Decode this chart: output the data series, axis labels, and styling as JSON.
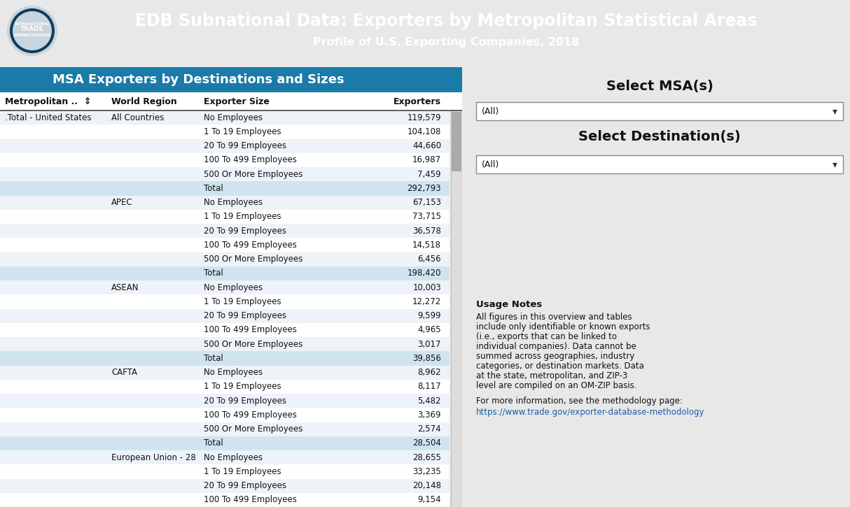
{
  "header_bg": "#0d3d5e",
  "header_text_color": "#ffffff",
  "title_line1": "EDB Subnational Data: Exporters by Metropolitan Statistical Areas",
  "title_line2": "Profile of U.S. Exporting Companies, 2018",
  "table_title": "MSA Exporters by Destinations and Sizes",
  "table_title_bg": "#1a7aa8",
  "col_headers": [
    "Metropolitan ..  ⇕",
    "World Region",
    "Exporter Size",
    "Exporters"
  ],
  "rows": [
    [
      ".Total - United States",
      "All Countries",
      "No Employees",
      "119,579"
    ],
    [
      "",
      "",
      "1 To 19 Employees",
      "104,108"
    ],
    [
      "",
      "",
      "20 To 99 Employees",
      "44,660"
    ],
    [
      "",
      "",
      "100 To 499 Employees",
      "16,987"
    ],
    [
      "",
      "",
      "500 Or More Employees",
      "7,459"
    ],
    [
      "",
      "",
      "Total",
      "292,793"
    ],
    [
      "",
      "APEC",
      "No Employees",
      "67,153"
    ],
    [
      "",
      "",
      "1 To 19 Employees",
      "73,715"
    ],
    [
      "",
      "",
      "20 To 99 Employees",
      "36,578"
    ],
    [
      "",
      "",
      "100 To 499 Employees",
      "14,518"
    ],
    [
      "",
      "",
      "500 Or More Employees",
      "6,456"
    ],
    [
      "",
      "",
      "Total",
      "198,420"
    ],
    [
      "",
      "ASEAN",
      "No Employees",
      "10,003"
    ],
    [
      "",
      "",
      "1 To 19 Employees",
      "12,272"
    ],
    [
      "",
      "",
      "20 To 99 Employees",
      "9,599"
    ],
    [
      "",
      "",
      "100 To 499 Employees",
      "4,965"
    ],
    [
      "",
      "",
      "500 Or More Employees",
      "3,017"
    ],
    [
      "",
      "",
      "Total",
      "39,856"
    ],
    [
      "",
      "CAFTA",
      "No Employees",
      "8,962"
    ],
    [
      "",
      "",
      "1 To 19 Employees",
      "8,117"
    ],
    [
      "",
      "",
      "20 To 99 Employees",
      "5,482"
    ],
    [
      "",
      "",
      "100 To 499 Employees",
      "3,369"
    ],
    [
      "",
      "",
      "500 Or More Employees",
      "2,574"
    ],
    [
      "",
      "",
      "Total",
      "28,504"
    ],
    [
      "",
      "European Union - 28",
      "No Employees",
      "28,655"
    ],
    [
      "",
      "",
      "1 To 19 Employees",
      "33,235"
    ],
    [
      "",
      "",
      "20 To 99 Employees",
      "20,148"
    ],
    [
      "",
      "",
      "100 To 499 Employees",
      "9,154"
    ]
  ],
  "total_row_indices": [
    5,
    11,
    17,
    23
  ],
  "row_alt_colors": [
    "#edf3f8",
    "#ffffff"
  ],
  "total_row_color": "#d0e4f0",
  "page_bg": "#e8e8e8",
  "right_panel_bg": "#f2f2f2",
  "select_msa_title": "Select MSA(s)",
  "select_dest_title": "Select Destination(s)",
  "dropdown_label": "(All)",
  "usage_title": "Usage Notes",
  "usage_body": "All figures in this overview and tables include only identifiable or known exports (i.e., exports that can be linked to individual companies). Data cannot be summed across geographies, industry categories, or destination markets. Data at the state, metropolitan, and ZIP-3 level are compiled on an OM-ZIP basis.",
  "usage_footer": "For more information, see the methodology page:",
  "link_text": "https://www.trade.gov/exporter-database-methodology",
  "col_starts": [
    0.005,
    0.235,
    0.435,
    0.77
  ],
  "col_ends": [
    0.235,
    0.435,
    0.77,
    0.965
  ],
  "col_aligns": [
    "left",
    "left",
    "left",
    "right"
  ]
}
